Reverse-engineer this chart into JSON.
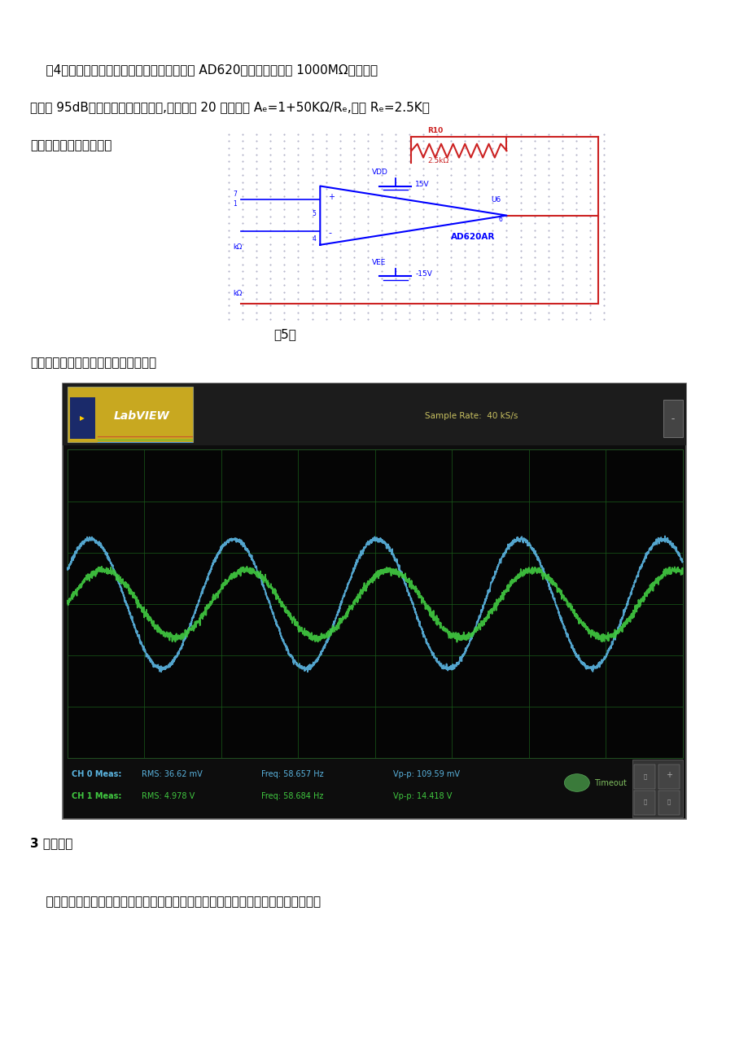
{
  "page_bg": "#ffffff",
  "text_color": "#000000",
  "para4_line1": "    （4）仪表放大：由于这部分电路采用集成的 AD620，其输入电阴为 1000MΩ，其模抑",
  "para4_line2": "制比为 95dB，满足本单元设计要求,增益定为 20 倍，根据 Aₑ=1+50KΩ/Rₑ,可取 Rₑ=2.5K。",
  "para4_line3": "仪表放大部分电路如下：",
  "caption5": "（5）",
  "scope_label": "仪表放大与输入波形双综如下图所示：",
  "sample_rate_text": "Sample Rate:  40 kS/s",
  "sample_rate_color": "#c8c060",
  "labview_logo_text": "LabVIEW",
  "labview_logo_bg": "#c8a820",
  "ch0_color": "#5ab4e0",
  "ch1_color": "#40c840",
  "ch0_meas": "CH 0 Meas:",
  "ch0_rms": "RMS: 36.62 mV",
  "ch0_freq": "Freq: 58.657 Hz",
  "ch0_vpp": "Vp-p: 109.59 mV",
  "ch1_meas": "CH 1 Meas:",
  "ch1_rms": "RMS: 4.978 V",
  "ch1_freq": "Freq: 58.684 Hz",
  "ch1_vpp": "Vp-p: 14.418 V",
  "timeout_text": "Timeout",
  "timeout_color": "#80c060",
  "wave_blue_amp": 0.42,
  "wave_green_amp": 0.22,
  "wave_cycles": 4.3,
  "wave_phase": 0.55,
  "section3_title": "3 滤波电路",
  "section3_body": "    高频干扰，其他医疗仪器的噪声会干扰心电信号的测量，其幅度不是很高，但由于心",
  "font_size": 11
}
